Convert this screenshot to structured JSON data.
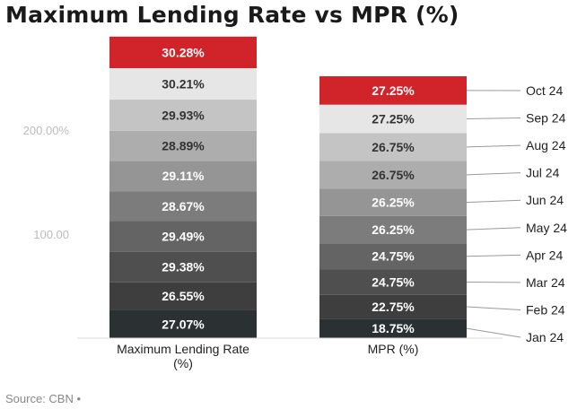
{
  "chart_data": {
    "type": "bar",
    "stacked": true,
    "title": "Maximum Lending Rate vs MPR (%)",
    "categories": [
      "Maximum Lending Rate (%)",
      "MPR (%)"
    ],
    "category_lines": [
      [
        "Maximum Lending Rate",
        "(%)"
      ],
      [
        "MPR (%)"
      ]
    ],
    "series": [
      {
        "name": "Jan 24",
        "values": [
          27.07,
          18.75
        ],
        "labels": [
          "27.07%",
          "18.75%"
        ],
        "color": "#2b3133"
      },
      {
        "name": "Feb 24",
        "values": [
          26.55,
          22.75
        ],
        "labels": [
          "26.55%",
          "22.75%"
        ],
        "color": "#3e3e3e"
      },
      {
        "name": "Mar 24",
        "values": [
          29.38,
          24.75
        ],
        "labels": [
          "29.38%",
          "24.75%"
        ],
        "color": "#4f4f4f"
      },
      {
        "name": "Apr 24",
        "values": [
          29.49,
          24.75
        ],
        "labels": [
          "29.49%",
          "24.75%"
        ],
        "color": "#646464"
      },
      {
        "name": "May 24",
        "values": [
          28.67,
          26.25
        ],
        "labels": [
          "28.67%",
          "26.25%"
        ],
        "color": "#7c7c7c"
      },
      {
        "name": "Jun 24",
        "values": [
          29.11,
          26.25
        ],
        "labels": [
          "29.11%",
          "26.25%"
        ],
        "color": "#959595"
      },
      {
        "name": "Jul 24",
        "values": [
          28.89,
          26.75
        ],
        "labels": [
          "28.89%",
          "26.75%"
        ],
        "color": "#adadad"
      },
      {
        "name": "Aug 24",
        "values": [
          29.93,
          26.75
        ],
        "labels": [
          "29.93%",
          "26.75%"
        ],
        "color": "#c4c4c4"
      },
      {
        "name": "Sep 24",
        "values": [
          30.21,
          27.25
        ],
        "labels": [
          "30.21%",
          "27.25%"
        ],
        "color": "#e6e6e6"
      },
      {
        "name": "Oct 24",
        "values": [
          30.28,
          27.25
        ],
        "labels": [
          "30.28%",
          "27.25%"
        ],
        "color": "#d0232a"
      }
    ],
    "y_ticks": [
      {
        "value": 100,
        "label": "100.00"
      },
      {
        "value": 200,
        "label": "200.00%"
      }
    ],
    "ylim": [
      0,
      288.58
    ],
    "grid": false,
    "legend_placement": "right, labels connected to MPR segments"
  },
  "source": "Source: CBN •"
}
